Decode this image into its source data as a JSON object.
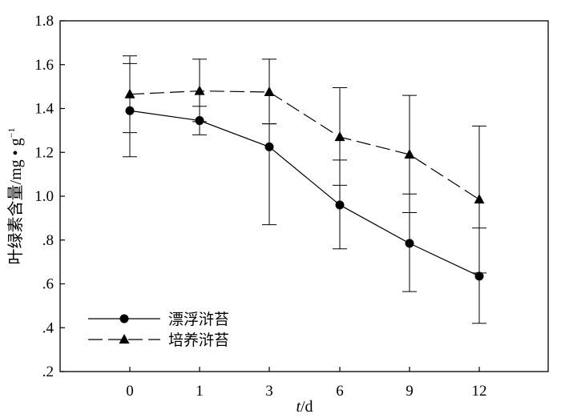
{
  "chart_data": {
    "type": "line",
    "x": [
      0,
      1,
      3,
      6,
      9,
      12
    ],
    "xticks": [
      "0",
      "1",
      "3",
      "6",
      "9",
      "12"
    ],
    "yticks": [
      ".2",
      ".4",
      ".6",
      ".8",
      "1.0",
      "1.2",
      "1.4",
      "1.6",
      "1.8"
    ],
    "ylim": [
      0.2,
      1.8
    ],
    "xlabel_italic": "t",
    "xlabel_rest": "/d",
    "ylabel": "叶绿素含量/mg • g",
    "ylabel_sup": "−1",
    "grid": false,
    "legend_position": "bottom-left",
    "series": [
      {
        "name": "漂浮浒苔",
        "marker": "circle",
        "dash": "solid",
        "values": [
          1.39,
          1.345,
          1.225,
          0.96,
          0.785,
          0.635
        ],
        "err_low": [
          1.18,
          1.28,
          0.87,
          0.76,
          0.565,
          0.42
        ],
        "err_high": [
          1.605,
          1.41,
          1.33,
          1.165,
          1.01,
          0.855
        ]
      },
      {
        "name": "培养浒苔",
        "marker": "triangle",
        "dash": "dashed",
        "values": [
          1.465,
          1.48,
          1.475,
          1.27,
          1.19,
          0.985
        ],
        "err_low": [
          1.29,
          1.34,
          1.33,
          1.05,
          0.925,
          0.65
        ],
        "err_high": [
          1.64,
          1.625,
          1.625,
          1.495,
          1.46,
          1.32
        ]
      }
    ]
  }
}
